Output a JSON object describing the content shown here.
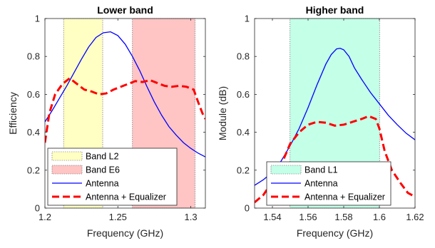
{
  "chart_data": [
    {
      "type": "line",
      "title": "Lower band",
      "xlabel": "Frequency (GHz)",
      "ylabel": "Efficiency",
      "xlim": [
        1.2,
        1.31
      ],
      "ylim": [
        0,
        1
      ],
      "xticks": [
        1.2,
        1.25,
        1.3
      ],
      "xtick_labels": [
        "1.2",
        "1.25",
        "1.3"
      ],
      "yticks": [
        0,
        0.2,
        0.4,
        0.6,
        0.8,
        1
      ],
      "ytick_labels": [
        "0",
        "0.2",
        "0.4",
        "0.6",
        "0.8",
        "1"
      ],
      "grid": false,
      "legend_position": "bottom-left",
      "bands": [
        {
          "name": "Band L2",
          "x0": 1.2128,
          "x1": 1.2396,
          "color": "#ffffc4"
        },
        {
          "name": "Band E6",
          "x0": 1.26,
          "x1": 1.3029,
          "color": "#ffc4c4"
        }
      ],
      "series": [
        {
          "name": "Antenna",
          "color": "#0000ff",
          "dash": "solid",
          "x": [
            1.2,
            1.205,
            1.21,
            1.215,
            1.22,
            1.225,
            1.23,
            1.235,
            1.24,
            1.245,
            1.25,
            1.255,
            1.26,
            1.265,
            1.27,
            1.275,
            1.28,
            1.285,
            1.29,
            1.295,
            1.3,
            1.305,
            1.31
          ],
          "y": [
            0.455,
            0.515,
            0.58,
            0.645,
            0.715,
            0.785,
            0.85,
            0.9,
            0.925,
            0.93,
            0.91,
            0.865,
            0.8,
            0.725,
            0.64,
            0.56,
            0.49,
            0.43,
            0.385,
            0.345,
            0.315,
            0.29,
            0.27
          ]
        },
        {
          "name": "Antenna + Equalizer",
          "color": "#ff0000",
          "dash": "dashed",
          "x": [
            1.2,
            1.203,
            1.207,
            1.212,
            1.217,
            1.222,
            1.227,
            1.232,
            1.237,
            1.242,
            1.247,
            1.252,
            1.257,
            1.262,
            1.267,
            1.272,
            1.277,
            1.282,
            1.287,
            1.292,
            1.297,
            1.302,
            1.305,
            1.308,
            1.31
          ],
          "y": [
            0.345,
            0.5,
            0.6,
            0.655,
            0.685,
            0.655,
            0.625,
            0.615,
            0.6,
            0.605,
            0.625,
            0.64,
            0.655,
            0.67,
            0.665,
            0.675,
            0.66,
            0.645,
            0.64,
            0.645,
            0.64,
            0.625,
            0.56,
            0.5,
            0.47
          ]
        }
      ]
    },
    {
      "type": "line",
      "title": "Higher band",
      "xlabel": "Frequency (GHz)",
      "ylabel": "Module (dB)",
      "xlim": [
        1.53,
        1.62
      ],
      "ylim": [
        0,
        1
      ],
      "xticks": [
        1.54,
        1.56,
        1.58,
        1.6,
        1.62
      ],
      "xtick_labels": [
        "1.54",
        "1.56",
        "1.58",
        "1.6",
        "1.62"
      ],
      "yticks": [
        0,
        0.2,
        0.4,
        0.6,
        0.8,
        1
      ],
      "ytick_labels": [
        "0",
        "0.2",
        "0.4",
        "0.6",
        "0.8",
        "1"
      ],
      "grid": false,
      "legend_position": "bottom-left",
      "bands": [
        {
          "name": "Band L1",
          "x0": 1.5499,
          "x1": 1.6001,
          "color": "#c4ffe8"
        }
      ],
      "series": [
        {
          "name": "Antenna",
          "color": "#0000ff",
          "dash": "solid",
          "x": [
            1.53,
            1.535,
            1.54,
            1.545,
            1.55,
            1.555,
            1.56,
            1.565,
            1.57,
            1.573,
            1.576,
            1.578,
            1.58,
            1.583,
            1.586,
            1.59,
            1.595,
            1.6,
            1.605,
            1.61,
            1.615,
            1.62
          ],
          "y": [
            0.12,
            0.15,
            0.19,
            0.25,
            0.33,
            0.42,
            0.53,
            0.65,
            0.76,
            0.81,
            0.84,
            0.843,
            0.835,
            0.8,
            0.74,
            0.68,
            0.61,
            0.55,
            0.49,
            0.44,
            0.395,
            0.36
          ]
        },
        {
          "name": "Antenna + Equalizer",
          "color": "#ff0000",
          "dash": "dashed",
          "x": [
            1.53,
            1.535,
            1.54,
            1.545,
            1.55,
            1.555,
            1.56,
            1.565,
            1.57,
            1.575,
            1.58,
            1.585,
            1.59,
            1.594,
            1.598,
            1.6,
            1.603,
            1.607,
            1.612,
            1.616,
            1.62
          ],
          "y": [
            0.03,
            0.07,
            0.14,
            0.23,
            0.34,
            0.4,
            0.44,
            0.455,
            0.45,
            0.435,
            0.44,
            0.455,
            0.47,
            0.485,
            0.47,
            0.42,
            0.3,
            0.2,
            0.13,
            0.08,
            0.06
          ]
        }
      ]
    }
  ]
}
